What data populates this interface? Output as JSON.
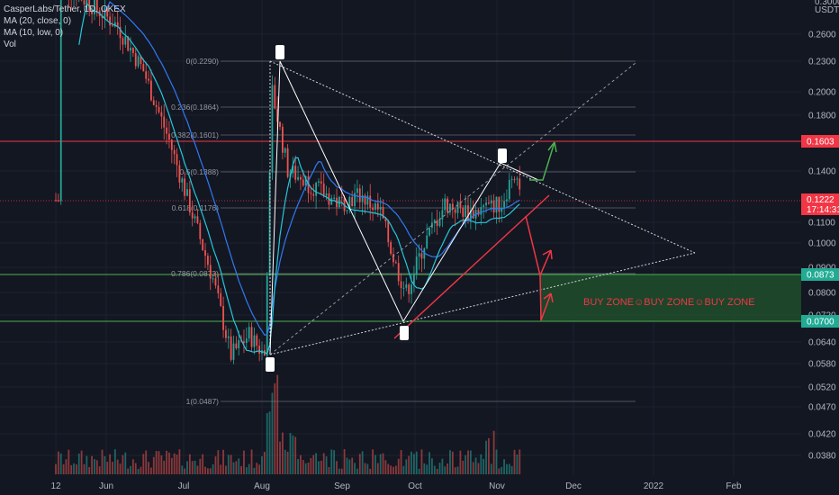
{
  "legend": {
    "symbol": "CasperLabs/Tether, 1D, OKEX",
    "ma20": "MA (20, close, 0)",
    "ma10": "MA (10, low, 0)",
    "vol": "Vol"
  },
  "axis": {
    "currency": "USDT",
    "top_partial": "0.3000",
    "price_ticks": [
      "0.2600",
      "0.2300",
      "0.2000",
      "0.1800",
      "0.1400",
      "0.1100",
      "0.1000",
      "0.0900",
      "0.0800",
      "0.0720",
      "0.0640",
      "0.0580",
      "0.0520",
      "0.0470",
      "0.0420",
      "0.0380"
    ],
    "hidden_ticks": [
      "0.1600",
      "0.1300",
      "0.1200",
      "0.0900",
      "0.0720"
    ],
    "time_ticks": [
      "12",
      "Jun",
      "Jul",
      "Aug",
      "Sep",
      "Oct",
      "Nov",
      "Dec",
      "2022",
      "Feb"
    ]
  },
  "price_tags": {
    "resistance": {
      "label": "0.1603",
      "color": "#f23645"
    },
    "current": {
      "label": "0.1222",
      "countdown": "17:14:31",
      "color": "#f23645"
    },
    "buy_top": {
      "label": "0.0873",
      "color": "#22ab94"
    },
    "buy_bottom": {
      "label": "0.0700",
      "color": "#22ab94"
    }
  },
  "fib_levels": [
    "0(0.2290)",
    "0.236(0.1864)",
    "0.382(0.1601)",
    "0.5(0.1388)",
    "0.618(0.1176)",
    "0.786(0.0873)",
    "1(0.0487)"
  ],
  "annotations": {
    "buy_zone": "BUY ZONE☺BUY ZONE☺BUY ZONE"
  },
  "colors": {
    "background": "#131722",
    "up": "#26a69a",
    "down": "#ef5350",
    "ma20": "#3179f5",
    "ma10": "#26c6da",
    "resistance": "#f23645",
    "buy_zone": "#1e4d2b",
    "buy_line": "#4caf50"
  },
  "chart_data": {
    "type": "candlestick",
    "title": "CasperLabs/Tether, 1D, OKEX",
    "scale": "log",
    "ylim": [
      0.036,
      0.31
    ],
    "x_labels": [
      "12",
      "Jun",
      "Jul",
      "Aug",
      "Sep",
      "Oct",
      "Nov",
      "Dec",
      "2022",
      "Feb"
    ],
    "close_path": [
      {
        "date": "2021-05-14",
        "close": 0.33
      },
      {
        "date": "2021-05-25",
        "close": 0.3
      },
      {
        "date": "2021-06-05",
        "close": 0.27
      },
      {
        "date": "2021-06-15",
        "close": 0.22
      },
      {
        "date": "2021-06-25",
        "close": 0.16
      },
      {
        "date": "2021-07-05",
        "close": 0.11
      },
      {
        "date": "2021-07-12",
        "close": 0.085
      },
      {
        "date": "2021-07-19",
        "close": 0.06
      },
      {
        "date": "2021-07-26",
        "close": 0.066
      },
      {
        "date": "2021-08-01",
        "close": 0.06
      },
      {
        "date": "2021-08-04",
        "close": 0.2
      },
      {
        "date": "2021-08-10",
        "close": 0.14
      },
      {
        "date": "2021-08-20",
        "close": 0.13
      },
      {
        "date": "2021-08-30",
        "close": 0.12
      },
      {
        "date": "2021-09-07",
        "close": 0.125
      },
      {
        "date": "2021-09-15",
        "close": 0.115
      },
      {
        "date": "2021-09-21",
        "close": 0.09
      },
      {
        "date": "2021-09-25",
        "close": 0.08
      },
      {
        "date": "2021-10-02",
        "close": 0.1
      },
      {
        "date": "2021-10-10",
        "close": 0.12
      },
      {
        "date": "2021-10-20",
        "close": 0.115
      },
      {
        "date": "2021-11-01",
        "close": 0.12
      },
      {
        "date": "2021-11-06",
        "close": 0.14
      },
      {
        "date": "2021-11-10",
        "close": 0.122
      }
    ],
    "series": [
      {
        "name": "MA (20, close, 0)"
      },
      {
        "name": "MA (10, low, 0)"
      },
      {
        "name": "Vol"
      }
    ]
  }
}
